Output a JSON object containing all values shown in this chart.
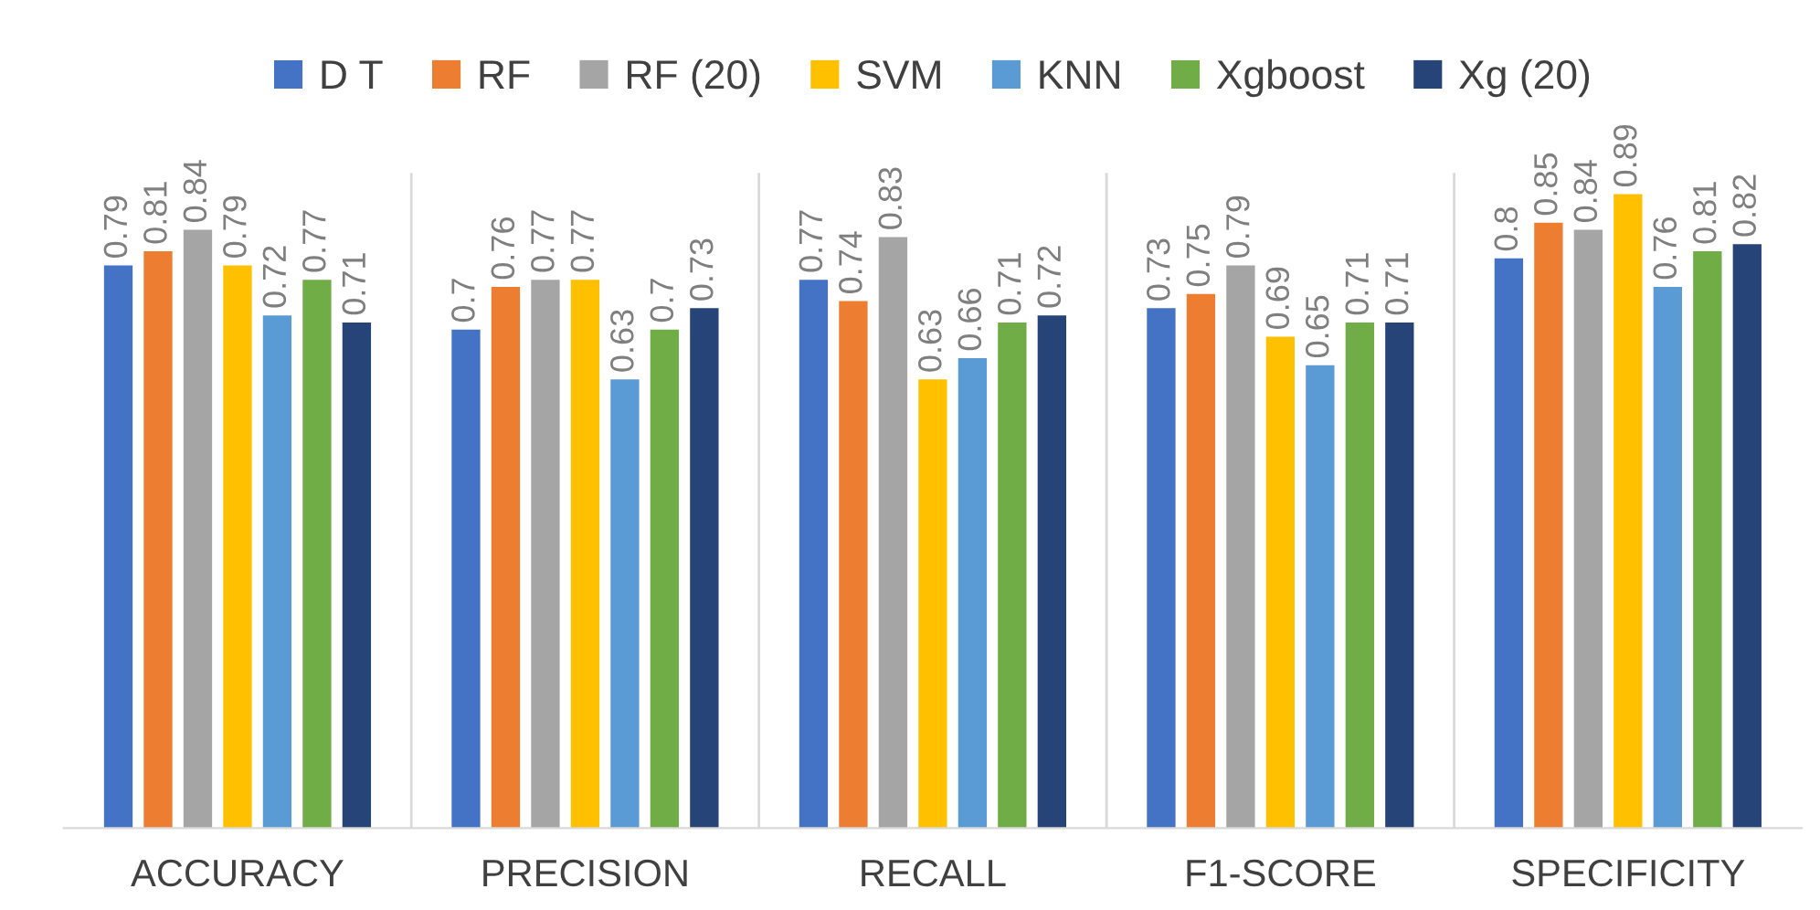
{
  "chart_data": {
    "type": "bar",
    "categories": [
      "ACCURACY",
      "PRECISION",
      "RECALL",
      "F1-SCORE",
      "SPECIFICITY"
    ],
    "series": [
      {
        "name": "D T",
        "color": "#4472c4",
        "values": [
          0.79,
          0.7,
          0.77,
          0.73,
          0.8
        ]
      },
      {
        "name": "RF",
        "color": "#ed7d31",
        "values": [
          0.81,
          0.76,
          0.74,
          0.75,
          0.85
        ]
      },
      {
        "name": "RF (20)",
        "color": "#a5a5a5",
        "values": [
          0.84,
          0.77,
          0.83,
          0.79,
          0.84
        ]
      },
      {
        "name": "SVM",
        "color": "#ffc000",
        "values": [
          0.79,
          0.77,
          0.63,
          0.69,
          0.89
        ]
      },
      {
        "name": "KNN",
        "color": "#5b9bd5",
        "values": [
          0.72,
          0.63,
          0.66,
          0.65,
          0.76
        ]
      },
      {
        "name": "Xgboost",
        "color": "#70ad47",
        "values": [
          0.77,
          0.7,
          0.71,
          0.71,
          0.81
        ]
      },
      {
        "name": "Xg (20)",
        "color": "#264478",
        "values": [
          0.71,
          0.73,
          0.72,
          0.71,
          0.82
        ]
      }
    ],
    "ylim": [
      0,
      0.92
    ],
    "data_labels": true,
    "legend": "top",
    "grid": "x",
    "tick_labels": "x"
  }
}
